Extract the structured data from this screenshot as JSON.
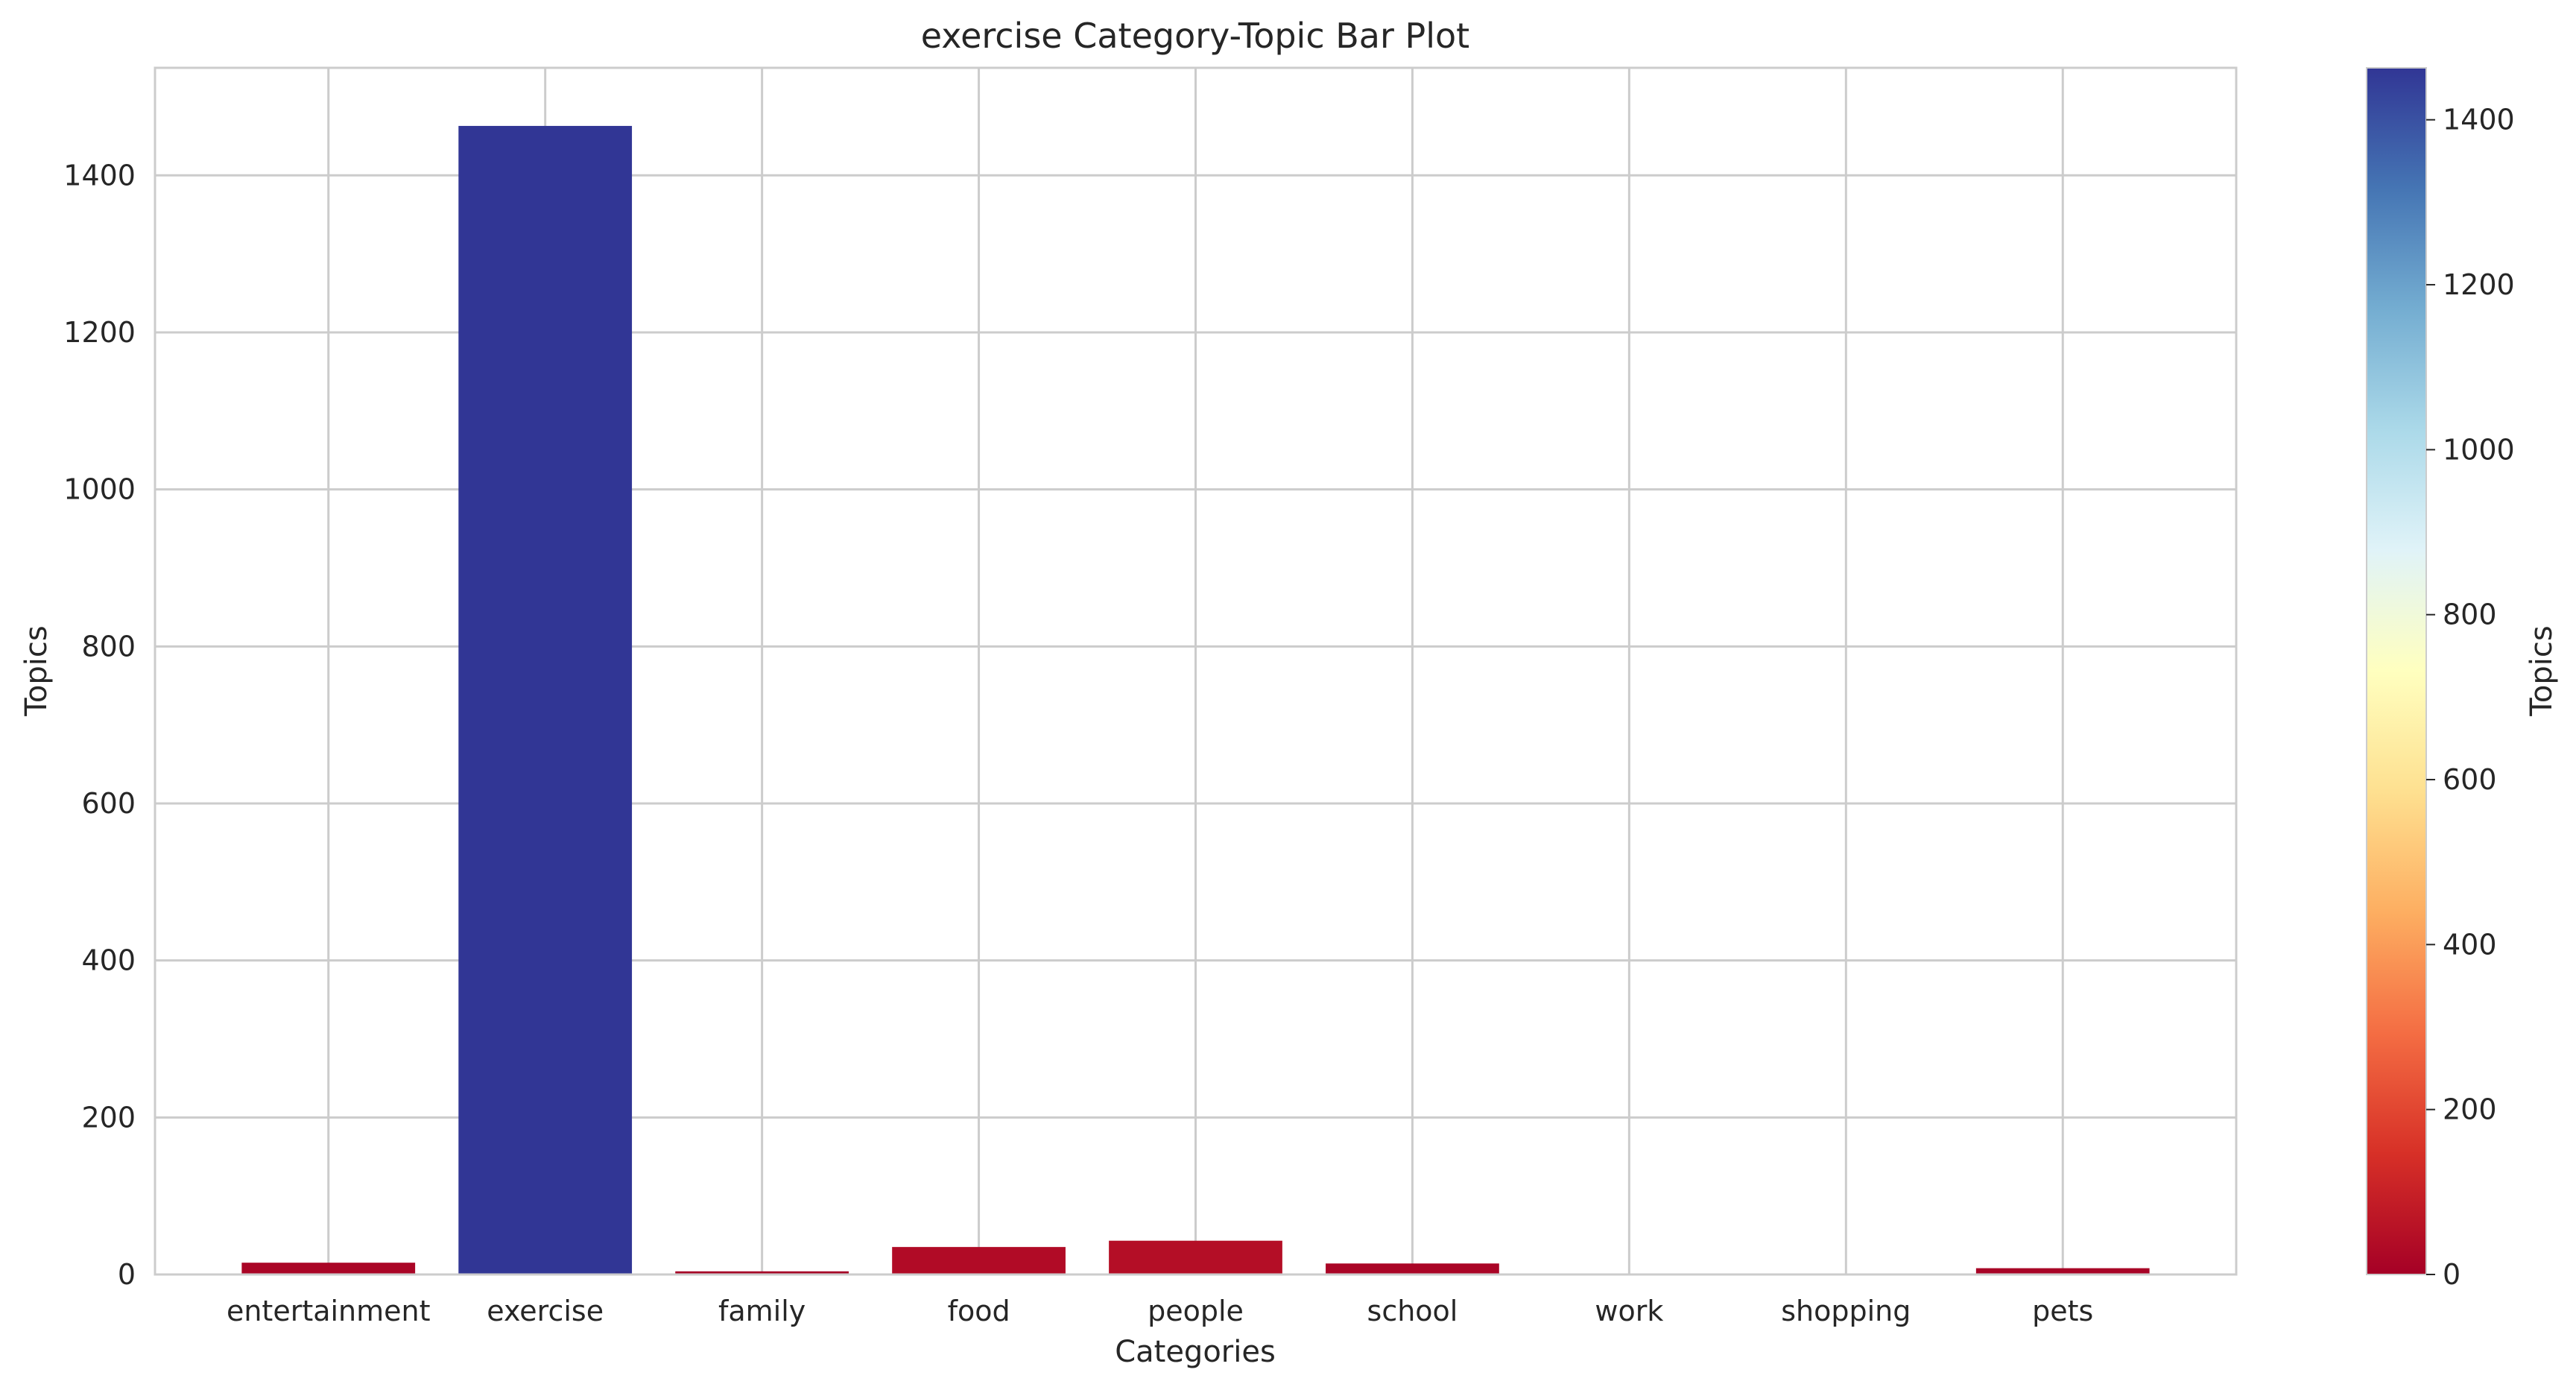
{
  "chart_data": {
    "type": "bar",
    "title": "exercise Category-Topic Bar Plot",
    "xlabel": "Categories",
    "ylabel": "Topics",
    "categories": [
      "entertainment",
      "exercise",
      "family",
      "food",
      "people",
      "school",
      "work",
      "shopping",
      "pets"
    ],
    "values": [
      15,
      1463,
      4,
      35,
      43,
      14,
      1,
      1,
      8
    ],
    "ylim": [
      0,
      1537
    ],
    "yticks": [
      0,
      200,
      400,
      600,
      800,
      1000,
      1200,
      1400
    ],
    "grid": true,
    "colorbar": {
      "label": "Topics",
      "colormap": "RdYlBu",
      "range": [
        0,
        1463
      ],
      "ticks": [
        0,
        200,
        400,
        600,
        800,
        1000,
        1200,
        1400
      ]
    },
    "colors": {
      "grid": "#cccccc",
      "spine": "#cccccc",
      "text": "#262626",
      "colormap_stops": [
        "#a50026",
        "#d73027",
        "#f46d43",
        "#fdae61",
        "#fee090",
        "#ffffbf",
        "#e0f3f8",
        "#abd9e9",
        "#74add1",
        "#4575b4",
        "#313695"
      ]
    }
  }
}
